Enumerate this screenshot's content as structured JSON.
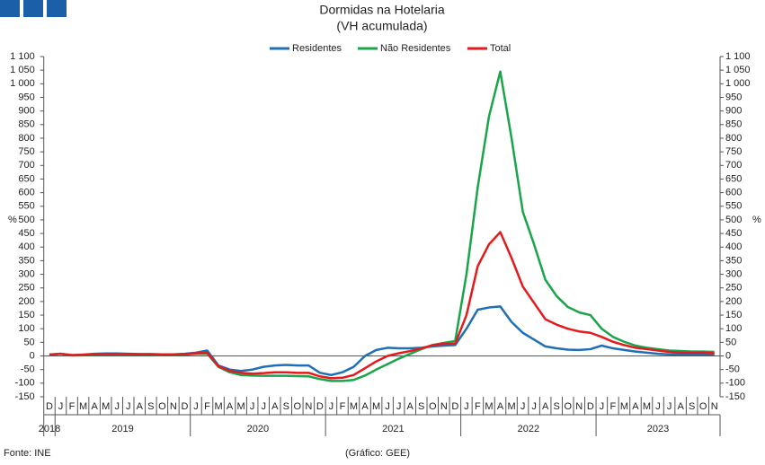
{
  "chart_data": {
    "type": "line",
    "title": "Dormidas na Hotelaria",
    "subtitle": "(VH acumulada)",
    "y_unit": "%",
    "source": "Fonte: INE",
    "credit": "(Gráfico: GEE)",
    "categories": [
      "D",
      "J",
      "F",
      "M",
      "A",
      "M",
      "J",
      "J",
      "A",
      "S",
      "O",
      "N",
      "D",
      "J",
      "F",
      "M",
      "A",
      "M",
      "J",
      "J",
      "A",
      "S",
      "O",
      "N",
      "D",
      "J",
      "F",
      "M",
      "A",
      "M",
      "J",
      "J",
      "A",
      "S",
      "O",
      "N",
      "D",
      "J",
      "F",
      "M",
      "A",
      "M",
      "J",
      "J",
      "A",
      "S",
      "O",
      "N",
      "D",
      "J",
      "F",
      "M",
      "A",
      "M",
      "J",
      "J",
      "A",
      "S",
      "O",
      "N"
    ],
    "years": [
      "2018",
      "2019",
      "2020",
      "2021",
      "2022",
      "2023"
    ],
    "series": [
      {
        "name": "Residentes",
        "color": "#1f6fb5",
        "values": [
          5,
          8,
          3,
          5,
          8,
          9,
          9,
          8,
          7,
          7,
          6,
          6,
          8,
          12,
          20,
          -35,
          -50,
          -55,
          -50,
          -40,
          -35,
          -33,
          -35,
          -35,
          -62,
          -70,
          -60,
          -40,
          0,
          22,
          30,
          28,
          28,
          30,
          35,
          38,
          40,
          100,
          170,
          178,
          182,
          125,
          85,
          60,
          35,
          28,
          23,
          22,
          25,
          38,
          28,
          22,
          16,
          12,
          8,
          6,
          5,
          5,
          5,
          5
        ]
      },
      {
        "name": "Não Residentes",
        "color": "#1aa54a",
        "values": [
          5,
          8,
          2,
          3,
          4,
          5,
          5,
          5,
          5,
          4,
          4,
          4,
          5,
          8,
          8,
          -40,
          -60,
          -70,
          -72,
          -73,
          -73,
          -73,
          -74,
          -75,
          -85,
          -92,
          -92,
          -88,
          -72,
          -50,
          -30,
          -10,
          8,
          25,
          40,
          48,
          55,
          300,
          620,
          880,
          1045,
          800,
          530,
          410,
          280,
          220,
          180,
          160,
          150,
          100,
          70,
          52,
          38,
          30,
          25,
          20,
          18,
          16,
          16,
          15
        ]
      },
      {
        "name": "Total",
        "color": "#e41a1c",
        "values": [
          5,
          8,
          3,
          4,
          6,
          7,
          7,
          7,
          6,
          6,
          5,
          5,
          7,
          10,
          12,
          -38,
          -55,
          -62,
          -65,
          -63,
          -60,
          -60,
          -62,
          -62,
          -75,
          -82,
          -80,
          -70,
          -45,
          -20,
          0,
          10,
          18,
          28,
          40,
          45,
          45,
          150,
          330,
          410,
          455,
          360,
          255,
          195,
          135,
          115,
          100,
          90,
          85,
          70,
          52,
          40,
          30,
          25,
          20,
          15,
          12,
          12,
          12,
          10
        ]
      }
    ],
    "ylim": [
      -150,
      1100
    ],
    "yticks": [
      -150,
      -100,
      -50,
      0,
      50,
      100,
      150,
      200,
      250,
      300,
      350,
      400,
      450,
      500,
      550,
      600,
      650,
      700,
      750,
      800,
      850,
      900,
      950,
      {
        "value": 1000,
        "label": "1 000"
      },
      {
        "value": 1050,
        "label": "1 050"
      },
      {
        "value": 1100,
        "label": "1 100"
      }
    ],
    "legend": "top"
  }
}
